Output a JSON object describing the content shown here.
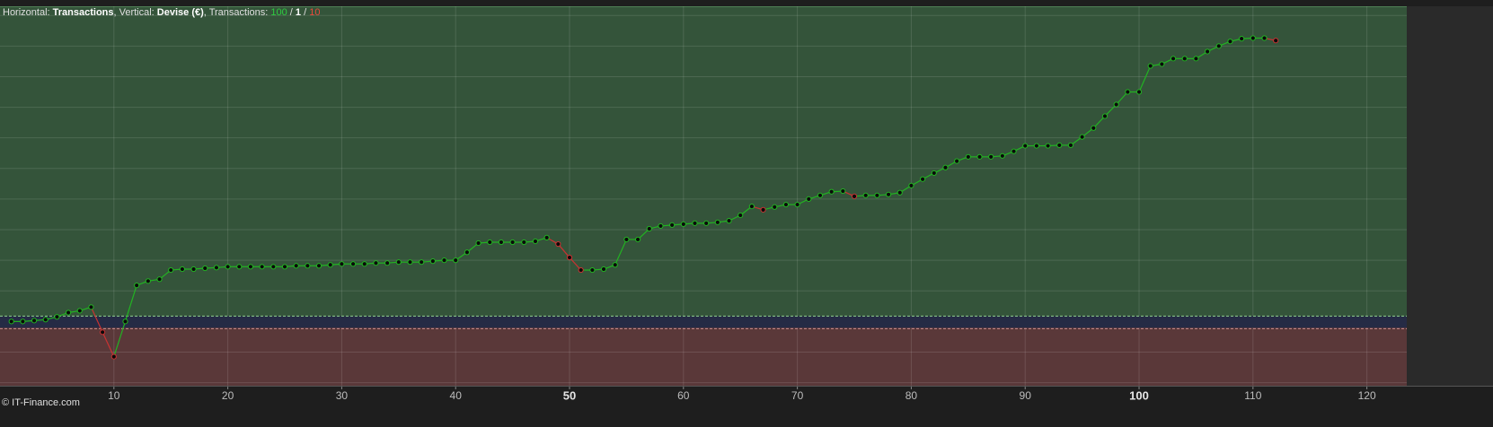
{
  "chart_data": {
    "type": "line",
    "title_parts": [
      {
        "text": "Horizontal: ",
        "bold": false,
        "color": "#e0e0e0"
      },
      {
        "text": "Transactions",
        "bold": true,
        "color": "#ffffff"
      },
      {
        "text": ", Vertical: ",
        "bold": false,
        "color": "#e0e0e0"
      },
      {
        "text": "Devise (€)",
        "bold": true,
        "color": "#ffffff"
      },
      {
        "text": ", Transactions: ",
        "bold": false,
        "color": "#e0e0e0"
      },
      {
        "text": "100",
        "bold": false,
        "color": "#2ecc40"
      },
      {
        "text": " / ",
        "bold": false,
        "color": "#e0e0e0"
      },
      {
        "text": "1",
        "bold": true,
        "color": "#ffffff"
      },
      {
        "text": " / ",
        "bold": false,
        "color": "#e0e0e0"
      },
      {
        "text": "10",
        "bold": false,
        "color": "#e84a3c"
      }
    ],
    "watermark": "© IT-Finance.com",
    "x": [
      1,
      2,
      3,
      4,
      5,
      6,
      7,
      8,
      9,
      10,
      11,
      12,
      13,
      14,
      15,
      16,
      17,
      18,
      19,
      20,
      21,
      22,
      23,
      24,
      25,
      26,
      27,
      28,
      29,
      30,
      31,
      32,
      33,
      34,
      35,
      36,
      37,
      38,
      39,
      40,
      41,
      42,
      43,
      44,
      45,
      46,
      47,
      48,
      49,
      50,
      51,
      52,
      53,
      54,
      55,
      56,
      57,
      58,
      59,
      60,
      61,
      62,
      63,
      64,
      65,
      66,
      67,
      68,
      69,
      70,
      71,
      72,
      73,
      74,
      75,
      76,
      77,
      78,
      79,
      80,
      81,
      82,
      83,
      84,
      85,
      86,
      87,
      88,
      89,
      90,
      91,
      92,
      93,
      94,
      95,
      96,
      97,
      98,
      99,
      100,
      101,
      102,
      103,
      104,
      105,
      106,
      107,
      108,
      109,
      110,
      111,
      112
    ],
    "values": [
      0,
      0,
      0.03,
      0.06,
      0.15,
      0.29,
      0.35,
      0.47,
      -0.35,
      -1.15,
      0,
      1.18,
      1.32,
      1.38,
      1.68,
      1.71,
      1.71,
      1.74,
      1.76,
      1.79,
      1.79,
      1.79,
      1.79,
      1.79,
      1.79,
      1.82,
      1.82,
      1.82,
      1.85,
      1.88,
      1.88,
      1.88,
      1.91,
      1.91,
      1.94,
      1.94,
      1.94,
      1.97,
      2.0,
      2.0,
      2.26,
      2.56,
      2.59,
      2.59,
      2.59,
      2.59,
      2.62,
      2.74,
      2.53,
      2.09,
      1.68,
      1.68,
      1.71,
      1.85,
      2.68,
      2.68,
      3.03,
      3.12,
      3.15,
      3.18,
      3.21,
      3.21,
      3.24,
      3.29,
      3.47,
      3.76,
      3.65,
      3.74,
      3.82,
      3.82,
      4.0,
      4.12,
      4.24,
      4.26,
      4.09,
      4.12,
      4.12,
      4.15,
      4.21,
      4.44,
      4.65,
      4.85,
      5.03,
      5.24,
      5.38,
      5.38,
      5.38,
      5.41,
      5.56,
      5.74,
      5.74,
      5.74,
      5.76,
      5.76,
      6.03,
      6.32,
      6.71,
      7.09,
      7.5,
      7.5,
      8.35,
      8.41,
      8.59,
      8.59,
      8.59,
      8.82,
      9.0,
      9.15,
      9.24,
      9.26,
      9.26,
      9.18
    ],
    "up_color": "#22b322",
    "down_color": "#c83232",
    "marker_color": "#0a0a0a",
    "xlim": [
      0,
      123.5
    ],
    "xticks": [
      10,
      20,
      30,
      40,
      50,
      60,
      70,
      80,
      90,
      100,
      110,
      120
    ],
    "major_xtick_step": 50,
    "ylim": [
      -2.1,
      10.3
    ],
    "yticks": [
      -2,
      -1,
      1,
      2,
      3,
      4,
      5,
      6,
      7,
      8,
      9,
      10
    ],
    "grid": true
  }
}
